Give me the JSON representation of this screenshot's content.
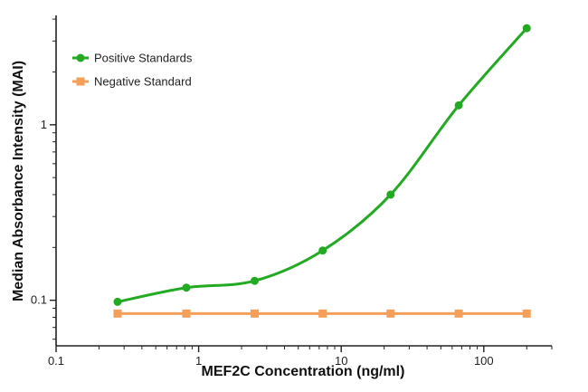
{
  "chart_data": {
    "type": "line",
    "title": "",
    "xlabel": "MEF2C Concentration (ng/ml)",
    "ylabel": "Median Absorbance Intensity (MAI)",
    "xscale": "log",
    "yscale": "log",
    "xlim": [
      0.1,
      300
    ],
    "ylim": [
      0.055,
      4.2
    ],
    "x_ticks": [
      0.1,
      1,
      10,
      100
    ],
    "x_tick_labels": [
      "0.1",
      "1",
      "10",
      "100"
    ],
    "y_ticks": [
      0.1,
      1
    ],
    "y_tick_labels": [
      "0.1",
      "1"
    ],
    "grid": false,
    "legend_position": "top-left",
    "series": [
      {
        "name": "Positive Standards",
        "color": "#22aa22",
        "marker": "circle",
        "x": [
          0.27,
          0.82,
          2.47,
          7.41,
          22.2,
          66.7,
          200
        ],
        "y": [
          0.098,
          0.118,
          0.129,
          0.192,
          0.4,
          1.29,
          3.55
        ],
        "curve_fit": true
      },
      {
        "name": "Negative Standard",
        "color": "#f5a05a",
        "marker": "square",
        "x": [
          0.27,
          0.82,
          2.47,
          7.41,
          22.2,
          66.7,
          200
        ],
        "y": [
          0.084,
          0.084,
          0.084,
          0.084,
          0.084,
          0.084,
          0.084
        ],
        "curve_fit": false
      }
    ]
  }
}
